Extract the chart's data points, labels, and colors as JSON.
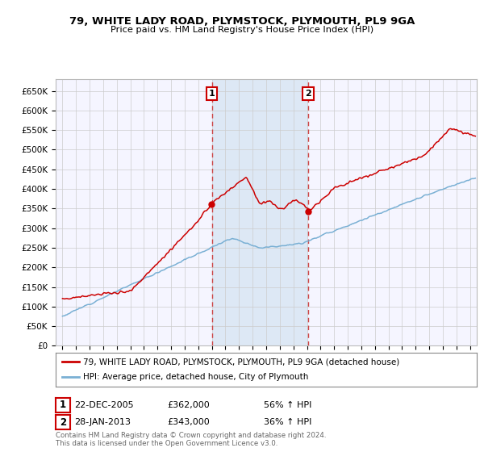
{
  "title": "79, WHITE LADY ROAD, PLYMSTOCK, PLYMOUTH, PL9 9GA",
  "subtitle": "Price paid vs. HM Land Registry's House Price Index (HPI)",
  "ylabel_ticks": [
    "£0",
    "£50K",
    "£100K",
    "£150K",
    "£200K",
    "£250K",
    "£300K",
    "£350K",
    "£400K",
    "£450K",
    "£500K",
    "£550K",
    "£600K",
    "£650K"
  ],
  "ylim": [
    0,
    680000
  ],
  "ytick_vals": [
    0,
    50000,
    100000,
    150000,
    200000,
    250000,
    300000,
    350000,
    400000,
    450000,
    500000,
    550000,
    600000,
    650000
  ],
  "line1_color": "#cc0000",
  "line2_color": "#7ab0d4",
  "purchase1_date": 2005.97,
  "purchase1_price": 362000,
  "purchase2_date": 2013.08,
  "purchase2_price": 343000,
  "legend_line1": "79, WHITE LADY ROAD, PLYMSTOCK, PLYMOUTH, PL9 9GA (detached house)",
  "legend_line2": "HPI: Average price, detached house, City of Plymouth",
  "annotation1_label": "1",
  "annotation2_label": "2",
  "footer": "Contains HM Land Registry data © Crown copyright and database right 2024.\nThis data is licensed under the Open Government Licence v3.0.",
  "bg_color": "#ffffff",
  "plot_bg_color": "#f5f5ff",
  "highlight_bg_color": "#dde8f5",
  "grid_color": "#cccccc",
  "highlight_x1": 2006.0,
  "highlight_x2": 2013.08,
  "xlim_left": 1994.5,
  "xlim_right": 2025.5
}
